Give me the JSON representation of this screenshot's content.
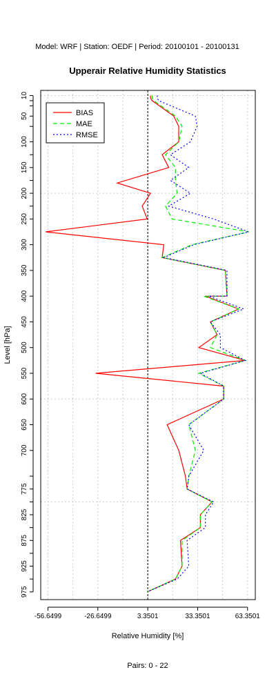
{
  "header": "Model: WRF | Station: OEDF | Period: 20100101 - 20100131",
  "footer": "Pairs:  0 - 22",
  "chart_data": {
    "type": "line",
    "title": "Upperair Relative Humidity Statistics",
    "xlabel": "Relative Humidity [%]",
    "ylabel": "Level [hPa]",
    "xlim": [
      -61,
      68
    ],
    "ylim": [
      990,
      0
    ],
    "xticks": [
      -56.6499,
      -26.6499,
      3.3501,
      33.3501,
      63.3501
    ],
    "xtick_labels": [
      "-56.6499",
      "-26.6499",
      "3.3501",
      "33.3501",
      "63.3501"
    ],
    "yticks": [
      10,
      50,
      100,
      150,
      200,
      250,
      300,
      350,
      400,
      450,
      500,
      550,
      600,
      650,
      700,
      775,
      825,
      875,
      925,
      975
    ],
    "yminor": [
      20,
      30,
      70,
      125,
      175,
      225,
      750,
      800,
      850,
      900,
      950
    ],
    "vgrid": [
      -41.65,
      -11.65,
      18.35,
      48.35
    ],
    "hgrid": [
      10,
      200,
      600,
      800
    ],
    "zero_line_x": 3.3501,
    "grid": true,
    "legend_position": "top-left",
    "series": [
      {
        "name": "BIAS",
        "color": "#ff0000",
        "dash": "",
        "points": [
          [
            5,
            10
          ],
          [
            5,
            15
          ],
          [
            6,
            20
          ],
          [
            19,
            50
          ],
          [
            22,
            70
          ],
          [
            22,
            100
          ],
          [
            12,
            125
          ],
          [
            16,
            150
          ],
          [
            -15,
            180
          ],
          [
            5,
            200
          ],
          [
            0,
            225
          ],
          [
            3,
            250
          ],
          [
            -58,
            275
          ],
          [
            13,
            300
          ],
          [
            12,
            325
          ],
          [
            50,
            350
          ],
          [
            51,
            400
          ],
          [
            38,
            400
          ],
          [
            58,
            425
          ],
          [
            41,
            450
          ],
          [
            45,
            475
          ],
          [
            34,
            500
          ],
          [
            62,
            525
          ],
          [
            -28,
            550
          ],
          [
            49,
            575
          ],
          [
            49,
            600
          ],
          [
            15,
            650
          ],
          [
            22,
            700
          ],
          [
            26,
            750
          ],
          [
            27,
            775
          ],
          [
            42,
            800
          ],
          [
            35,
            825
          ],
          [
            35,
            850
          ],
          [
            23,
            875
          ],
          [
            24,
            925
          ],
          [
            20,
            950
          ],
          [
            3,
            975
          ]
        ]
      },
      {
        "name": "MAE",
        "color": "#00ee00",
        "dash": "6,4",
        "points": [
          [
            6,
            10
          ],
          [
            6,
            15
          ],
          [
            7,
            20
          ],
          [
            20,
            50
          ],
          [
            24,
            70
          ],
          [
            22,
            100
          ],
          [
            14,
            125
          ],
          [
            20,
            150
          ],
          [
            20,
            175
          ],
          [
            21,
            200
          ],
          [
            14,
            225
          ],
          [
            18,
            250
          ],
          [
            64,
            275
          ],
          [
            30,
            300
          ],
          [
            12,
            325
          ],
          [
            50,
            350
          ],
          [
            51,
            400
          ],
          [
            37,
            400
          ],
          [
            58,
            425
          ],
          [
            41,
            450
          ],
          [
            45,
            475
          ],
          [
            41,
            500
          ],
          [
            62,
            525
          ],
          [
            34,
            550
          ],
          [
            49,
            575
          ],
          [
            49,
            600
          ],
          [
            28,
            650
          ],
          [
            32,
            700
          ],
          [
            28,
            750
          ],
          [
            27,
            775
          ],
          [
            42,
            800
          ],
          [
            35,
            825
          ],
          [
            35,
            850
          ],
          [
            24,
            875
          ],
          [
            24,
            925
          ],
          [
            20,
            950
          ],
          [
            3,
            975
          ]
        ]
      },
      {
        "name": "RMSE",
        "color": "#0000ff",
        "dash": "2,3",
        "points": [
          [
            9,
            10
          ],
          [
            9,
            15
          ],
          [
            10,
            20
          ],
          [
            32,
            50
          ],
          [
            33,
            70
          ],
          [
            29,
            100
          ],
          [
            17,
            125
          ],
          [
            28,
            150
          ],
          [
            17,
            175
          ],
          [
            29,
            200
          ],
          [
            16,
            225
          ],
          [
            43,
            250
          ],
          [
            64,
            275
          ],
          [
            31,
            300
          ],
          [
            13,
            325
          ],
          [
            51,
            350
          ],
          [
            51,
            400
          ],
          [
            40,
            400
          ],
          [
            61,
            425
          ],
          [
            41,
            450
          ],
          [
            47,
            475
          ],
          [
            47,
            500
          ],
          [
            62,
            525
          ],
          [
            35,
            550
          ],
          [
            49,
            575
          ],
          [
            49,
            600
          ],
          [
            28,
            650
          ],
          [
            37,
            700
          ],
          [
            28,
            750
          ],
          [
            27,
            775
          ],
          [
            43,
            800
          ],
          [
            38,
            825
          ],
          [
            38,
            850
          ],
          [
            27,
            875
          ],
          [
            28,
            925
          ],
          [
            21,
            950
          ],
          [
            3,
            975
          ]
        ]
      }
    ]
  }
}
